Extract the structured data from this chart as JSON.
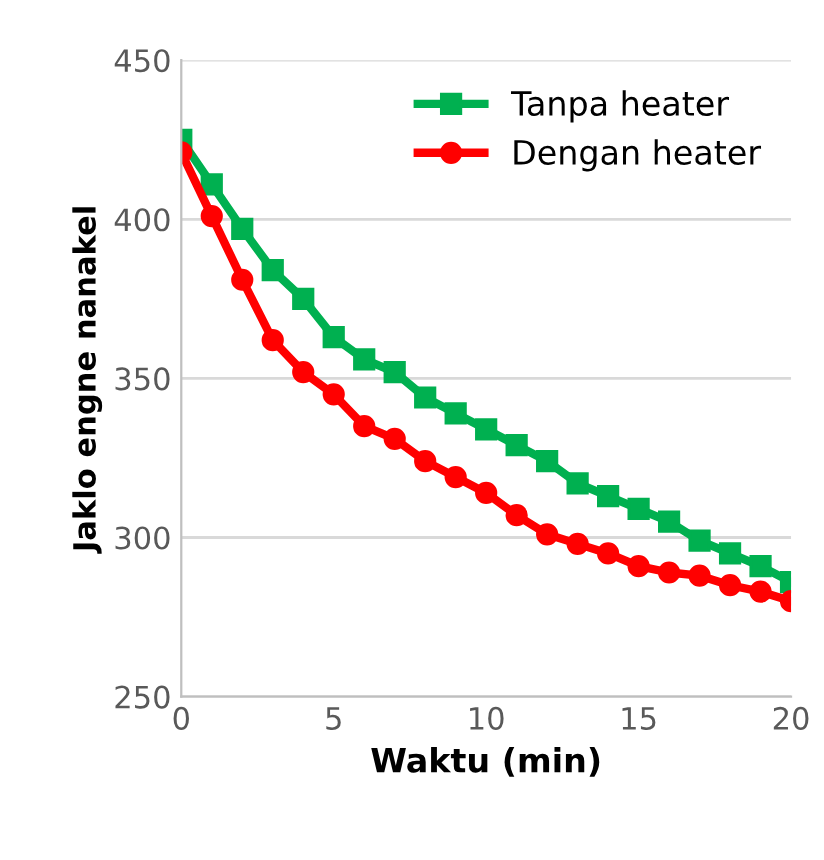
{
  "chart_data": {
    "type": "line",
    "xlabel": "Waktu (min)",
    "ylabel": "Jaklo engne nanakel",
    "x": [
      0,
      1,
      2,
      3,
      4,
      5,
      6,
      7,
      8,
      9,
      10,
      11,
      12,
      13,
      14,
      15,
      16,
      17,
      18,
      19,
      20
    ],
    "series": [
      {
        "name": "Tanpa heater",
        "color": "#00b050",
        "marker": "square",
        "values": [
          425,
          411,
          397,
          384,
          375,
          363,
          356,
          352,
          344,
          339,
          334,
          329,
          324,
          317,
          313,
          309,
          305,
          299,
          295,
          291,
          286
        ]
      },
      {
        "name": "Dengan heater",
        "color": "#ff0000",
        "marker": "circle",
        "values": [
          421,
          401,
          381,
          362,
          352,
          345,
          335,
          331,
          324,
          319,
          314,
          307,
          301,
          298,
          295,
          291,
          289,
          288,
          285,
          283,
          280
        ]
      }
    ],
    "xlim": [
      0,
      20
    ],
    "xticks": [
      0,
      5,
      10,
      15,
      20
    ],
    "ylim": [
      250,
      450
    ],
    "yticks": [
      250,
      300,
      350,
      400,
      450
    ],
    "grid": "y",
    "legend": "top right",
    "line_style": "solid"
  }
}
